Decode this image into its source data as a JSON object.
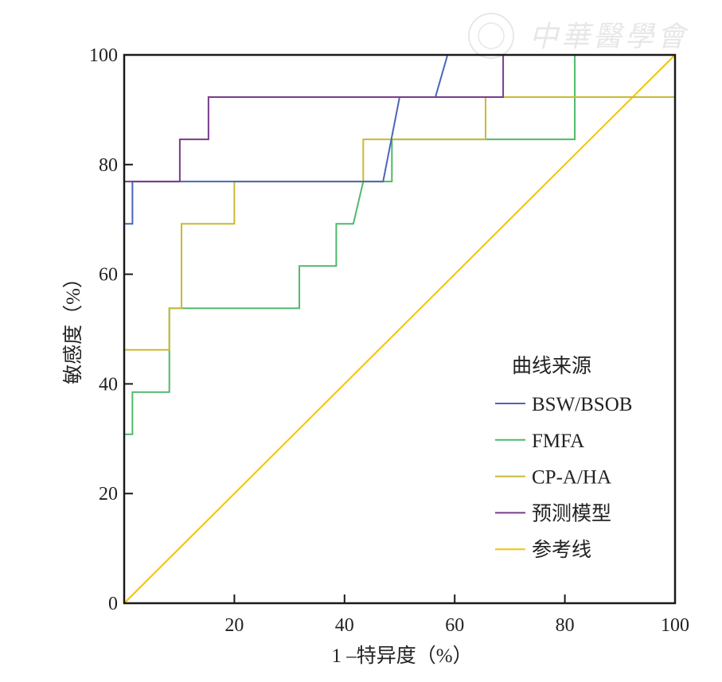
{
  "watermark": "中華醫學會",
  "chart_data": {
    "type": "line",
    "title": "",
    "xlabel": "1 –特异度（%）",
    "ylabel": "敏感度（%）",
    "xlim": [
      0,
      100
    ],
    "ylim": [
      0,
      100
    ],
    "xticks": [
      20,
      40,
      60,
      80,
      100
    ],
    "yticks": [
      0,
      20,
      40,
      60,
      80,
      100
    ],
    "grid": false,
    "legend": {
      "title": "曲线来源",
      "placement": "bottom-right"
    },
    "series": [
      {
        "name": "BSW/BSOB",
        "color": "#4a66b6",
        "points": [
          [
            0,
            69.2
          ],
          [
            1.5,
            69.2
          ],
          [
            1.5,
            76.9
          ],
          [
            47,
            76.9
          ],
          [
            50,
            92.3
          ],
          [
            56.5,
            92.3
          ],
          [
            58.7,
            100
          ],
          [
            100,
            100
          ]
        ]
      },
      {
        "name": "FMFA",
        "color": "#4fb96b",
        "points": [
          [
            0,
            30.8
          ],
          [
            1.5,
            30.8
          ],
          [
            1.5,
            38.5
          ],
          [
            8.2,
            38.5
          ],
          [
            8.2,
            53.8
          ],
          [
            31.8,
            53.8
          ],
          [
            31.8,
            61.5
          ],
          [
            38.5,
            61.5
          ],
          [
            38.5,
            69.2
          ],
          [
            41.6,
            69.2
          ],
          [
            43.4,
            76.9
          ],
          [
            48.6,
            76.9
          ],
          [
            48.6,
            84.6
          ],
          [
            81.8,
            84.6
          ],
          [
            81.8,
            100
          ],
          [
            100,
            100
          ]
        ]
      },
      {
        "name": "CP-A/HA",
        "color": "#cbb935",
        "points": [
          [
            0,
            46.2
          ],
          [
            8.2,
            46.2
          ],
          [
            8.2,
            53.8
          ],
          [
            10.4,
            53.8
          ],
          [
            10.4,
            69.2
          ],
          [
            20,
            69.2
          ],
          [
            20,
            76.9
          ],
          [
            43.4,
            76.9
          ],
          [
            43.4,
            84.6
          ],
          [
            65.6,
            84.6
          ],
          [
            65.6,
            92.3
          ],
          [
            100,
            92.3
          ]
        ]
      },
      {
        "name": "预测模型",
        "color": "#7b3b8b",
        "points": [
          [
            0,
            76.9
          ],
          [
            10.1,
            76.9
          ],
          [
            10.1,
            84.6
          ],
          [
            15.3,
            84.6
          ],
          [
            15.3,
            92.3
          ],
          [
            68.8,
            92.3
          ],
          [
            68.8,
            100
          ],
          [
            100,
            100
          ]
        ]
      },
      {
        "name": "参考线",
        "color": "#f5c300",
        "points": [
          [
            0,
            0
          ],
          [
            100,
            100
          ]
        ]
      }
    ]
  }
}
